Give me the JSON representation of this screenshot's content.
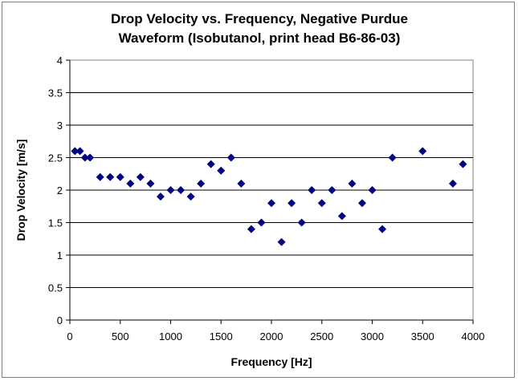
{
  "chart_data": {
    "type": "scatter",
    "title_lines": [
      "Drop Velocity vs. Frequency, Negative Purdue",
      "Waveform (Isobutanol, print head B6-86-03)"
    ],
    "xlabel": "Frequency [Hz]",
    "ylabel": "Drop Velocity [m/s]",
    "xlim": [
      0,
      4000
    ],
    "ylim": [
      0,
      4
    ],
    "x_ticks": [
      0,
      500,
      1000,
      1500,
      2000,
      2500,
      3000,
      3500,
      4000
    ],
    "y_ticks": [
      0,
      0.5,
      1,
      1.5,
      2,
      2.5,
      3,
      3.5,
      4
    ],
    "x_tick_labels": [
      "0",
      "500",
      "1000",
      "1500",
      "2000",
      "2500",
      "3000",
      "3500",
      "4000"
    ],
    "y_tick_labels": [
      "0",
      "0.5",
      "1",
      "1.5",
      "2",
      "2.5",
      "3",
      "3.5",
      "4"
    ],
    "grid": "horizontal",
    "marker": "diamond",
    "marker_color": "#000080",
    "series": [
      {
        "name": "Drop Velocity",
        "x": [
          50,
          100,
          150,
          200,
          300,
          400,
          500,
          600,
          700,
          800,
          900,
          1000,
          1100,
          1200,
          1300,
          1400,
          1500,
          1600,
          1700,
          1800,
          1900,
          2000,
          2100,
          2200,
          2300,
          2400,
          2500,
          2600,
          2700,
          2800,
          2900,
          3000,
          3100,
          3200,
          3500,
          3800,
          3900
        ],
        "y": [
          2.6,
          2.6,
          2.5,
          2.5,
          2.2,
          2.2,
          2.2,
          2.1,
          2.2,
          2.1,
          1.9,
          2.0,
          2.0,
          1.9,
          2.1,
          2.4,
          2.3,
          2.5,
          2.1,
          1.4,
          1.5,
          1.8,
          1.2,
          1.8,
          1.5,
          2.0,
          1.8,
          2.0,
          1.6,
          2.1,
          1.8,
          2.0,
          1.4,
          2.5,
          2.6,
          2.1,
          2.4
        ]
      }
    ]
  }
}
